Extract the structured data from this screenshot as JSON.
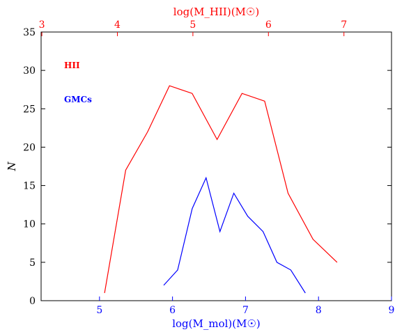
{
  "chart_data": {
    "type": "line",
    "title": "",
    "xlabel": "log(M_mol)(M☉)",
    "x2label": "log(M_HII)(M☉)",
    "ylabel": "N",
    "xlim": [
      4.2,
      9.0
    ],
    "x2lim": [
      2.99,
      7.63
    ],
    "ylim": [
      0,
      35
    ],
    "xticks": [
      5,
      6,
      7,
      8,
      9
    ],
    "x2ticks": [
      3,
      4,
      5,
      6,
      7
    ],
    "yticks": [
      0,
      5,
      10,
      15,
      20,
      25,
      30,
      35
    ],
    "grid": false,
    "legend_position": "top-left",
    "series": [
      {
        "name": "HII",
        "axis": "top",
        "color": "#ff0000",
        "x": [
          3.83,
          4.11,
          4.4,
          4.69,
          4.99,
          5.32,
          5.65,
          5.95,
          6.26,
          6.59,
          6.91
        ],
        "y": [
          1,
          17,
          22,
          28,
          27,
          21,
          27,
          26,
          14,
          8,
          5
        ]
      },
      {
        "name": "GMCs",
        "axis": "bottom",
        "color": "#0000ff",
        "x": [
          5.88,
          6.07,
          6.27,
          6.46,
          6.65,
          6.84,
          7.03,
          7.24,
          7.43,
          7.62,
          7.82
        ],
        "y": [
          2,
          4,
          12,
          16,
          9,
          14,
          11,
          9,
          5,
          4,
          1
        ]
      }
    ]
  }
}
